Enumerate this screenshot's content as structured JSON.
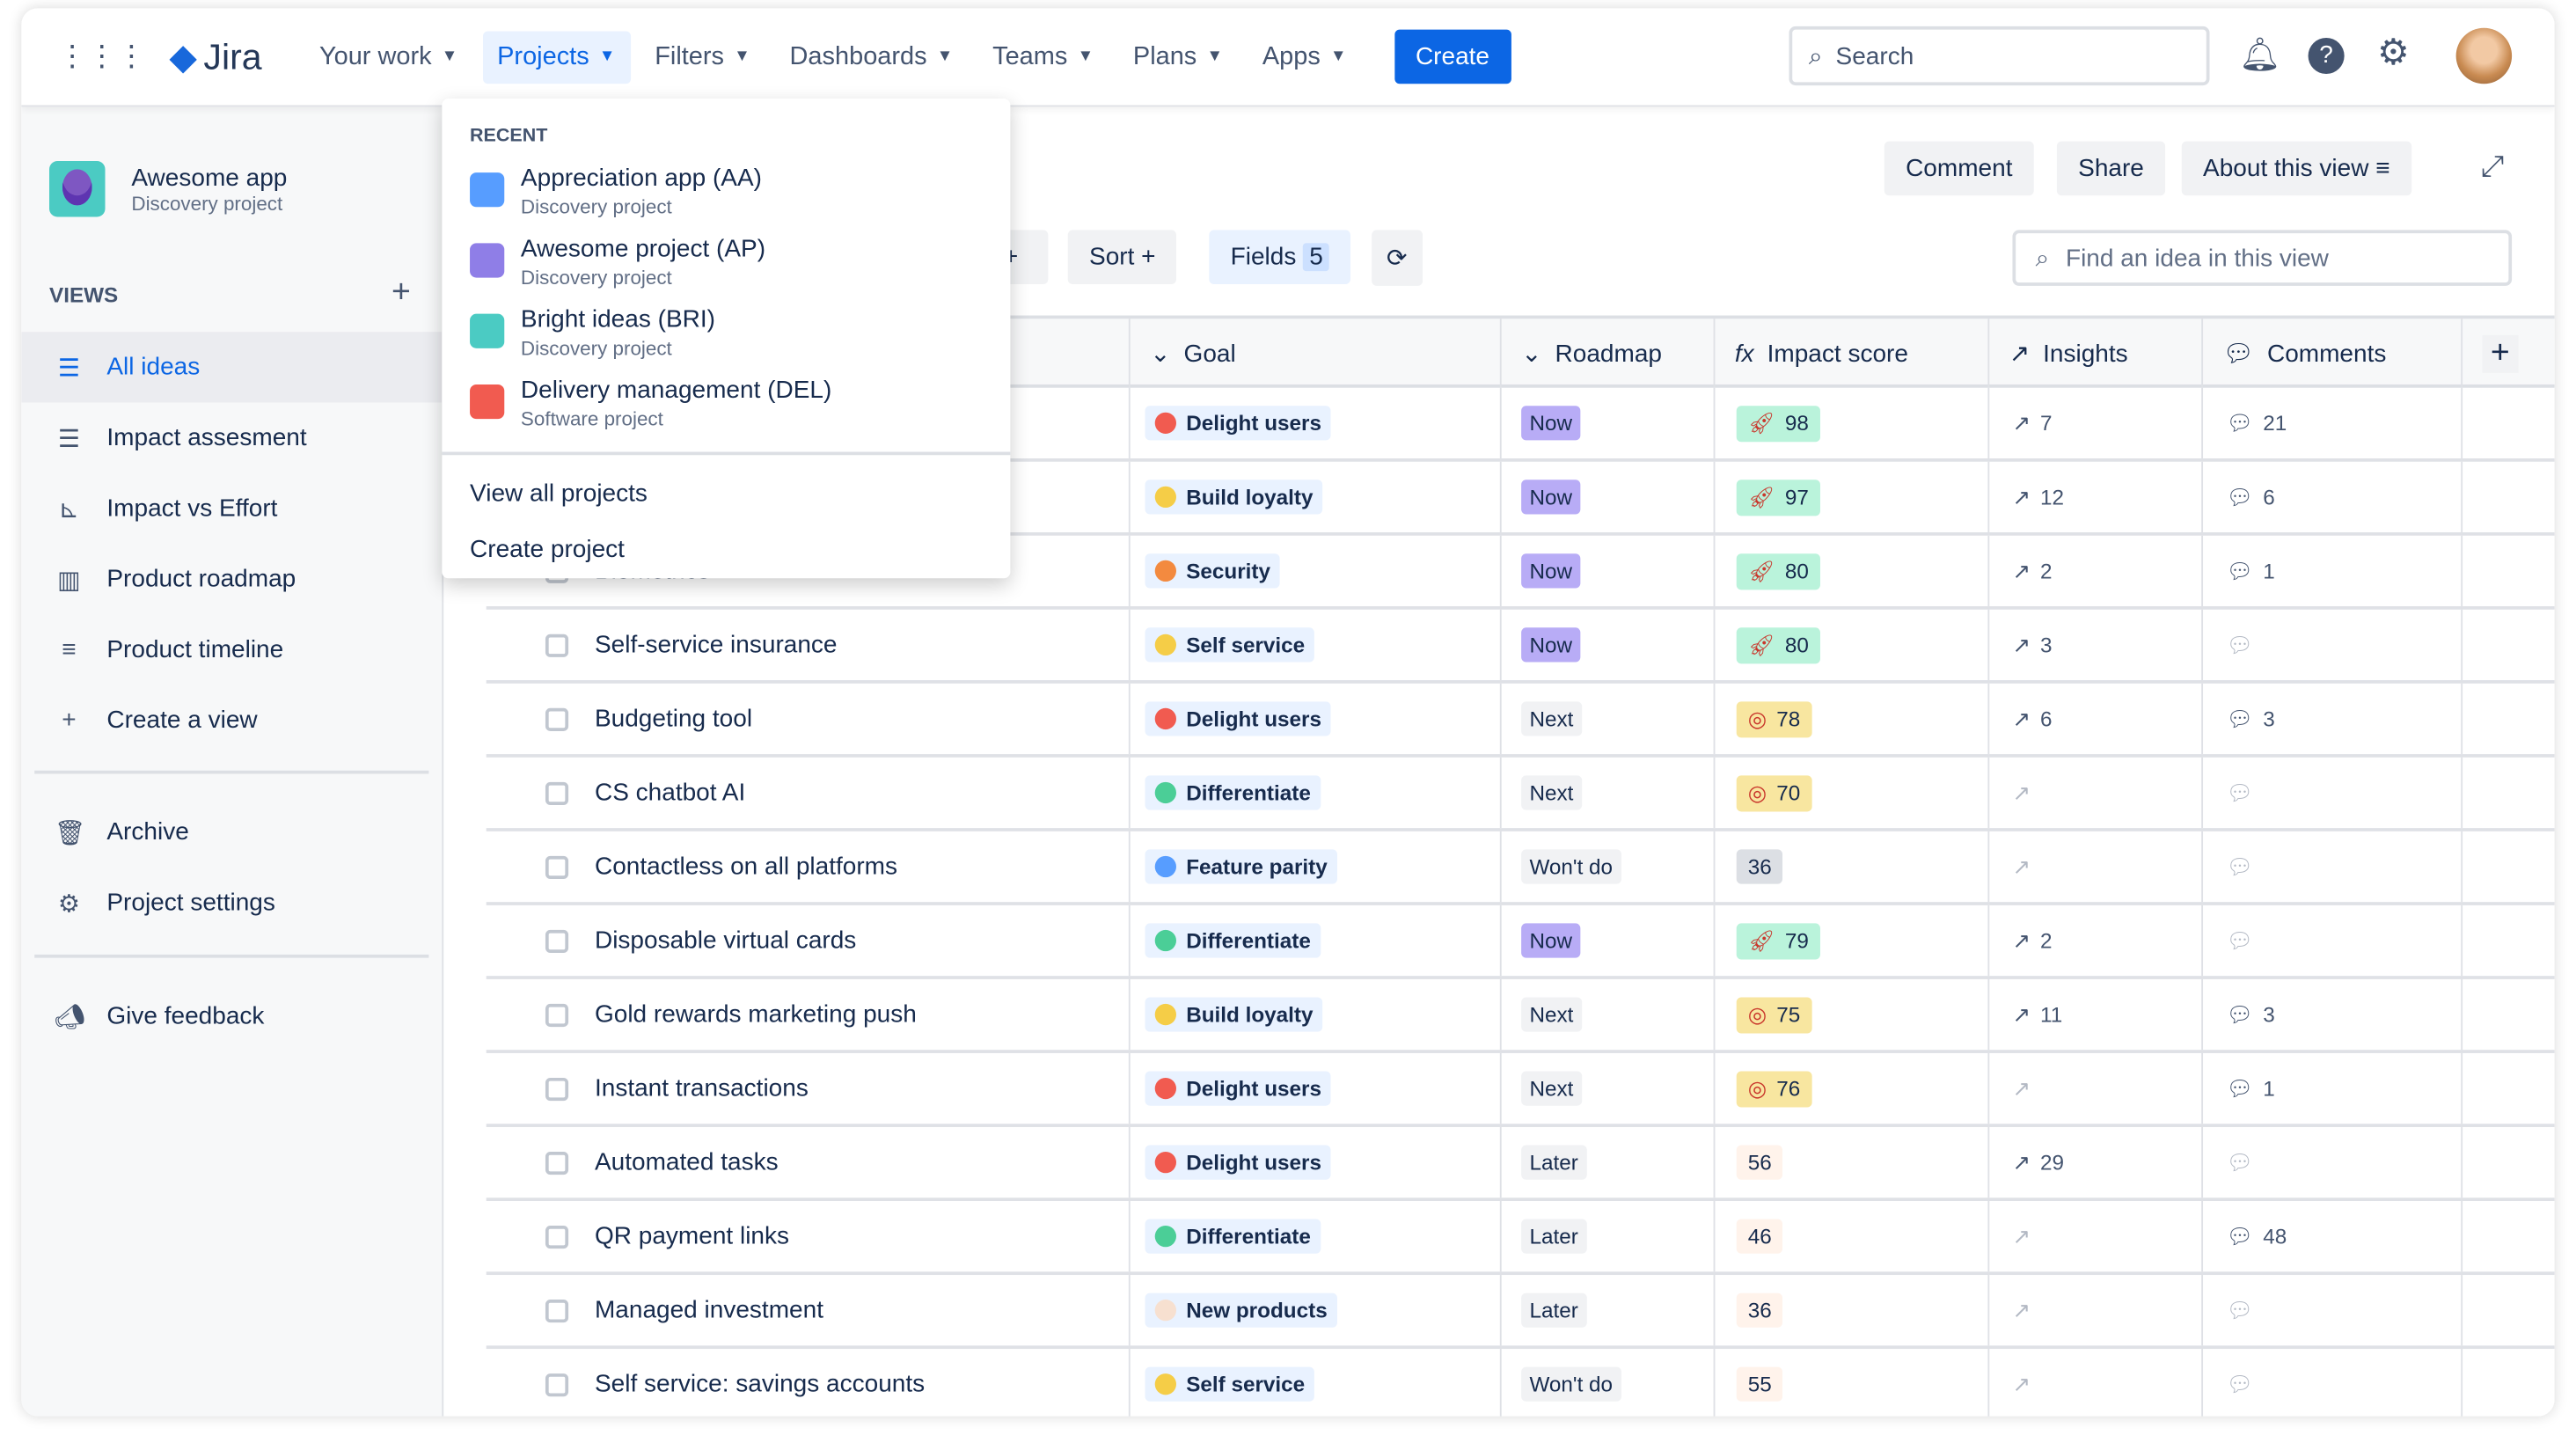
{
  "nav": {
    "logo": "Jira",
    "items": [
      {
        "label": "Your work"
      },
      {
        "label": "Projects",
        "active": true
      },
      {
        "label": "Filters"
      },
      {
        "label": "Dashboards"
      },
      {
        "label": "Teams"
      },
      {
        "label": "Plans"
      },
      {
        "label": "Apps"
      }
    ],
    "create": "Create",
    "search_placeholder": "Search",
    "icons": [
      "notification-icon",
      "help-icon",
      "settings-icon"
    ]
  },
  "sidebar": {
    "project_name": "Awesome app",
    "project_type": "Discovery project",
    "views_label": "VIEWS",
    "items": [
      {
        "label": "All ideas",
        "icon": "list-icon",
        "active": true
      },
      {
        "label": "Impact assesment",
        "icon": "list-icon"
      },
      {
        "label": "Impact vs Effort",
        "icon": "matrix-icon"
      },
      {
        "label": "Product roadmap",
        "icon": "board-icon"
      },
      {
        "label": "Product timeline",
        "icon": "timeline-icon"
      },
      {
        "label": "Create a view",
        "icon": "plus-icon"
      }
    ],
    "items2": [
      {
        "label": "Archive",
        "icon": "trash-icon"
      },
      {
        "label": "Project settings",
        "icon": "gear-icon"
      }
    ],
    "feedback": "Give feedback"
  },
  "toolbar": {
    "comment": "Comment",
    "share": "Share",
    "about": "About this view",
    "sort": "Sort",
    "fields": "Fields",
    "fields_count": "5",
    "find_placeholder": "Find an idea in this view"
  },
  "dropdown": {
    "header": "RECENT",
    "projects": [
      {
        "name": "Appreciation app (AA)",
        "type": "Discovery project",
        "color": "#579DFF"
      },
      {
        "name": "Awesome project (AP)",
        "type": "Discovery project",
        "color": "#8F7EE7"
      },
      {
        "name": "Bright ideas (BRI)",
        "type": "Discovery project",
        "color": "#4BCBC3"
      },
      {
        "name": "Delivery management (DEL)",
        "type": "Software project",
        "color": "#F15B50"
      }
    ],
    "view_all": "View all projects",
    "create": "Create project"
  },
  "columns": {
    "goal": "Goal",
    "roadmap": "Roadmap",
    "impact": "Impact score",
    "insights": "Insights",
    "comments": "Comments"
  },
  "colors": {
    "accent": "#0C66E4",
    "now": "#B8ACF6",
    "other": "#F1F2F4",
    "high": "#BAF3DB",
    "mid": "#F8E6A0",
    "low": "#FFF3EB",
    "gray": "#DCDFE4"
  },
  "rows": [
    {
      "title": "",
      "goal": "Delight users",
      "roadmap": "Now",
      "impact": "98",
      "level": "high",
      "insights": "7",
      "comments": "21"
    },
    {
      "title": "",
      "goal": "Build loyalty",
      "roadmap": "Now",
      "impact": "97",
      "level": "high",
      "insights": "12",
      "comments": "6"
    },
    {
      "title": "Biometrics",
      "goal": "Security",
      "roadmap": "Now",
      "impact": "80",
      "level": "high",
      "insights": "2",
      "comments": "1"
    },
    {
      "title": "Self-service insurance",
      "goal": "Self service",
      "roadmap": "Now",
      "impact": "80",
      "level": "high",
      "insights": "3",
      "comments": ""
    },
    {
      "title": "Budgeting tool",
      "goal": "Delight users",
      "roadmap": "Next",
      "impact": "78",
      "level": "mid",
      "insights": "6",
      "comments": "3"
    },
    {
      "title": "CS chatbot AI",
      "goal": "Differentiate",
      "roadmap": "Next",
      "impact": "70",
      "level": "mid",
      "insights": "",
      "comments": ""
    },
    {
      "title": "Contactless on all platforms",
      "goal": "Feature parity",
      "roadmap": "Won't do",
      "impact": "36",
      "level": "gray",
      "insights": "",
      "comments": ""
    },
    {
      "title": "Disposable virtual cards",
      "goal": "Differentiate",
      "roadmap": "Now",
      "impact": "79",
      "level": "high",
      "insights": "2",
      "comments": ""
    },
    {
      "title": "Gold rewards marketing push",
      "goal": "Build loyalty",
      "roadmap": "Next",
      "impact": "75",
      "level": "mid",
      "insights": "11",
      "comments": "3"
    },
    {
      "title": "Instant transactions",
      "goal": "Delight users",
      "roadmap": "Next",
      "impact": "76",
      "level": "mid",
      "insights": "",
      "comments": "1"
    },
    {
      "title": "Automated tasks",
      "goal": "Delight users",
      "roadmap": "Later",
      "impact": "56",
      "level": "low",
      "insights": "29",
      "comments": ""
    },
    {
      "title": "QR payment links",
      "goal": "Differentiate",
      "roadmap": "Later",
      "impact": "46",
      "level": "low",
      "insights": "",
      "comments": "48"
    },
    {
      "title": "Managed investment",
      "goal": "New products",
      "roadmap": "Later",
      "impact": "36",
      "level": "low",
      "insights": "",
      "comments": ""
    },
    {
      "title": "Self service: savings accounts",
      "goal": "Self service",
      "roadmap": "Won't do",
      "impact": "55",
      "level": "low",
      "insights": "",
      "comments": ""
    }
  ]
}
